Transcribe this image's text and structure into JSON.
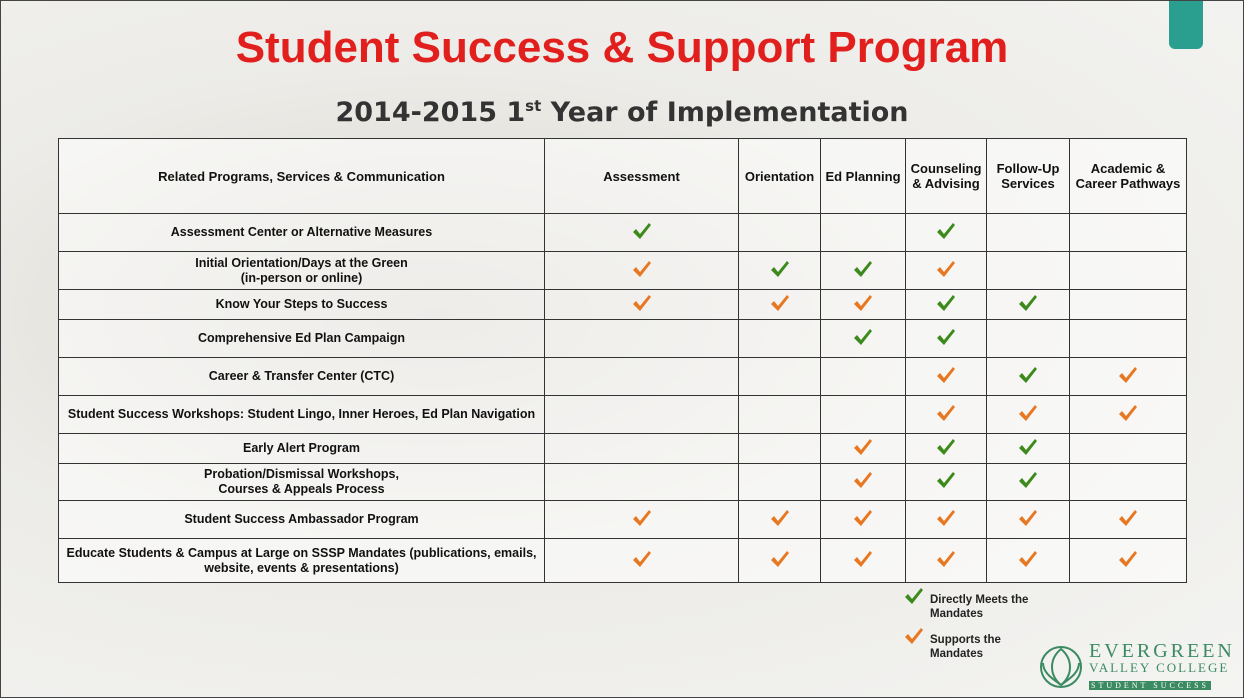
{
  "title": "Student Success & Support Program",
  "subtitle": [
    "2014-2015 1",
    "st",
    " Year of Implementation"
  ],
  "table": {
    "headers": [
      "Related Programs, Services & Communication",
      "Assessment",
      "Orientation",
      "Ed Planning",
      "Counseling & Advising",
      "Follow-Up Services",
      "Academic & Career Pathways"
    ],
    "rows": [
      {
        "label": [
          "Assessment Center or Alternative Measures"
        ],
        "cells": [
          "#3d8a1c",
          null,
          null,
          "#3d8a1c",
          null,
          null
        ]
      },
      {
        "label": [
          "Initial Orientation/Days at the Green",
          "(in-person or online)"
        ],
        "cells": [
          "#e87722",
          "#3d8a1c",
          "#3d8a1c",
          "#e87722",
          null,
          null
        ]
      },
      {
        "label": [
          "Know Your Steps to Success"
        ],
        "cells": [
          "#e87722",
          "#e87722",
          "#e87722",
          "#3d8a1c",
          "#3d8a1c",
          null
        ]
      },
      {
        "label": [
          "Comprehensive Ed Plan Campaign"
        ],
        "cells": [
          null,
          null,
          "#3d8a1c",
          "#3d8a1c",
          null,
          null
        ]
      },
      {
        "label": [
          "Career & Transfer Center (CTC)"
        ],
        "cells": [
          null,
          null,
          null,
          "#e87722",
          "#3d8a1c",
          "#e87722"
        ]
      },
      {
        "label": [
          "Student Success Workshops: Student Lingo, Inner Heroes, Ed Plan Navigation"
        ],
        "cells": [
          null,
          null,
          null,
          "#e87722",
          "#e87722",
          "#e87722"
        ]
      },
      {
        "label": [
          "Early Alert Program"
        ],
        "cells": [
          null,
          null,
          "#e87722",
          "#3d8a1c",
          "#3d8a1c",
          null
        ]
      },
      {
        "label": [
          "Probation/Dismissal Workshops,",
          "Courses & Appeals Process"
        ],
        "cells": [
          null,
          null,
          "#e87722",
          "#3d8a1c",
          "#3d8a1c",
          null
        ]
      },
      {
        "label": [
          "Student Success Ambassador Program"
        ],
        "cells": [
          "#e87722",
          "#e87722",
          "#e87722",
          "#e87722",
          "#e87722",
          "#e87722"
        ]
      },
      {
        "label": [
          "Educate Students & Campus at Large on SSSP Mandates (publications, emails, website, events & presentations)"
        ],
        "cells": [
          "#e87722",
          "#e87722",
          "#e87722",
          "#e87722",
          "#e87722",
          "#e87722"
        ]
      }
    ]
  },
  "legend": [
    {
      "color": "#3d8a1c",
      "label": "Directly Meets the Mandates"
    },
    {
      "color": "#e87722",
      "label": "Supports the Mandates"
    }
  ],
  "logo": {
    "name": "EVERGREEN",
    "sub": "VALLEY COLLEGE",
    "tag": "STUDENT SUCCESS"
  }
}
